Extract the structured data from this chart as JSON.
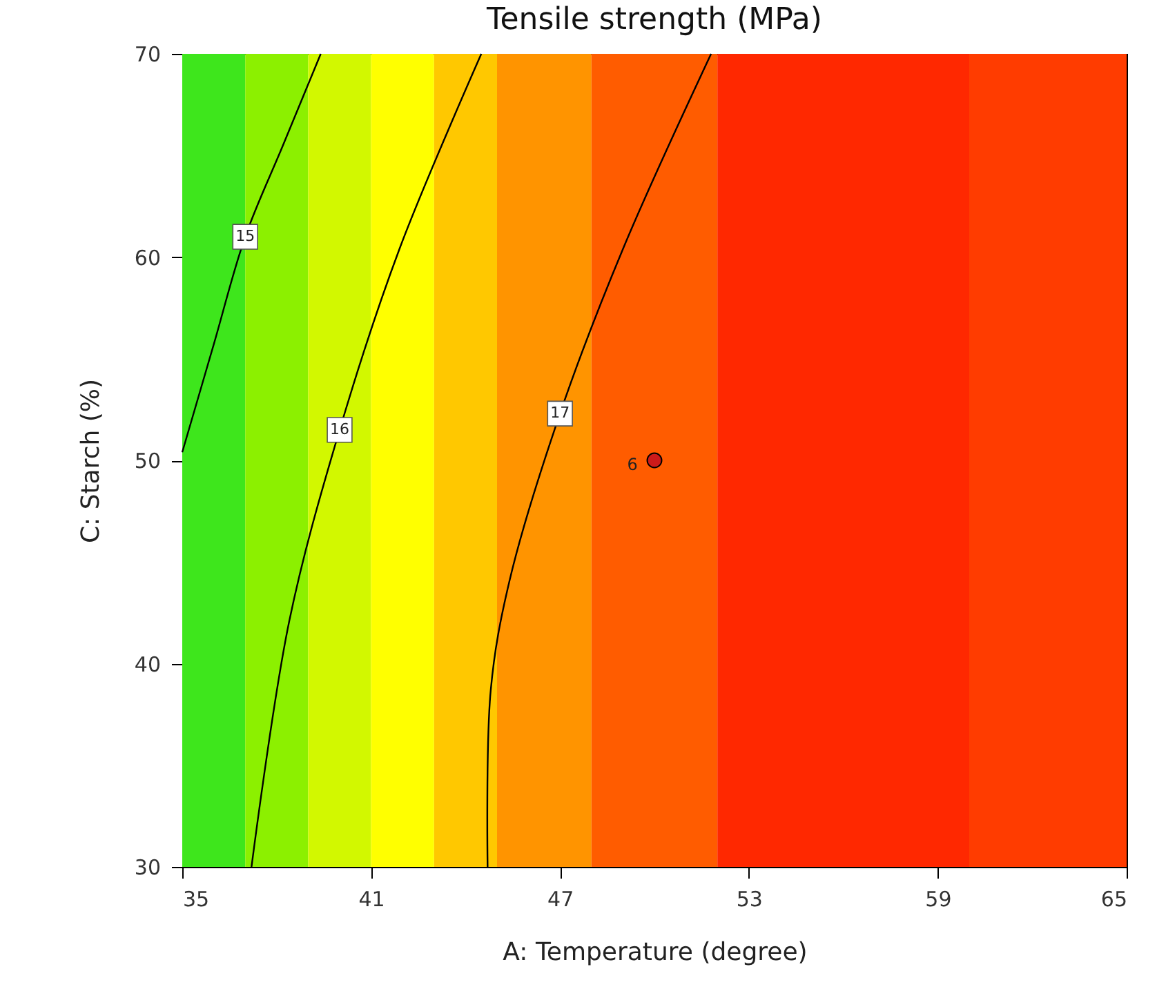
{
  "chart_data": {
    "type": "line",
    "title": "Tensile strength (MPa)",
    "xlabel": "A: Temperature (degree)",
    "ylabel": "C: Starch (%)",
    "xlim": [
      35,
      65
    ],
    "xticks": [
      35,
      41,
      47,
      53,
      59,
      65
    ],
    "ylim": [
      30,
      70
    ],
    "yticks": [
      30,
      40,
      50,
      60,
      70
    ],
    "grid": false,
    "marker": "none",
    "line_style": "solid",
    "series": [
      {
        "name": "15",
        "color": "#000000",
        "x": [
          35,
          36,
          37,
          38.2,
          39.4
        ],
        "values": [
          50.4,
          55.7,
          61,
          65.5,
          70
        ]
      },
      {
        "name": "16",
        "color": "#000000",
        "x": [
          37.2,
          38.4,
          40,
          41.9,
          44.5
        ],
        "values": [
          30,
          42.1,
          51.5,
          60.4,
          70
        ]
      },
      {
        "name": "17",
        "color": "#000000",
        "x": [
          44.7,
          44.8,
          45.4,
          47,
          49,
          51.8
        ],
        "values": [
          30,
          38.7,
          44.1,
          52.3,
          60.4,
          70
        ]
      },
      {
        "type": "scatter",
        "color": "#cc1a1a",
        "marker": "circle",
        "x": [
          50
        ],
        "values": [
          50
        ]
      }
    ],
    "annotations": [
      {
        "text": "6",
        "x": 50,
        "y": 50
      }
    ],
    "bands": [
      {
        "axis": "x",
        "from": 35,
        "to": 37,
        "color": "#3ee61c"
      },
      {
        "axis": "x",
        "from": 37,
        "to": 39,
        "color": "#8cf000"
      },
      {
        "axis": "x",
        "from": 39,
        "to": 41,
        "color": "#d2f800"
      },
      {
        "axis": "x",
        "from": 41,
        "to": 43,
        "color": "#ffff00"
      },
      {
        "axis": "x",
        "from": 43,
        "to": 45,
        "color": "#ffc800"
      },
      {
        "axis": "x",
        "from": 45,
        "to": 48,
        "color": "#ff9400"
      },
      {
        "axis": "x",
        "from": 48,
        "to": 52,
        "color": "#ff5c00"
      },
      {
        "axis": "x",
        "from": 52,
        "to": 60,
        "color": "#ff2800"
      },
      {
        "axis": "x",
        "from": 60,
        "to": 65,
        "color": "#ff3c00"
      }
    ]
  }
}
